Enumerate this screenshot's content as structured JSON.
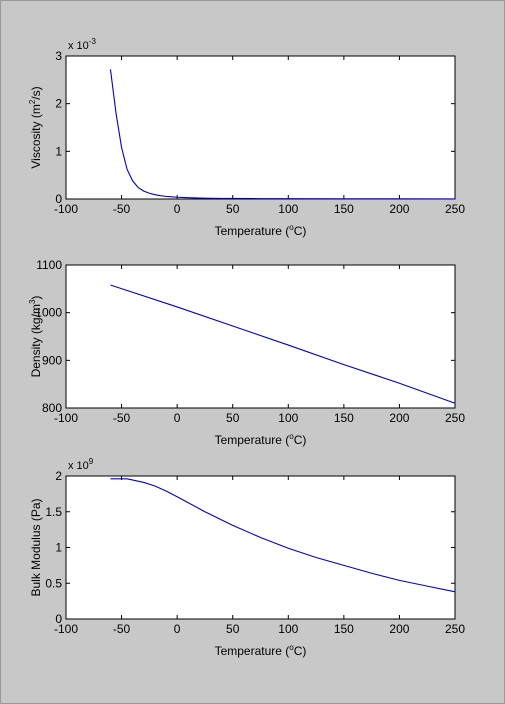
{
  "window": {
    "background": "#c8c8c8"
  },
  "chart_data": [
    {
      "type": "line",
      "xlabel": "Temperature (",
      "xlabel_sup": "o",
      "xlabel_end": "C)",
      "ylabel": "Viscosity (m",
      "ylabel_sup": "2",
      "ylabel_end": "/s)",
      "exponent_base": "x 10",
      "exponent_power": "-3",
      "xlim": [
        -100,
        250
      ],
      "ylim": [
        0,
        3
      ],
      "xticks": [
        "-100",
        "-50",
        "0",
        "50",
        "100",
        "150",
        "200",
        "250"
      ],
      "yticks": [
        "0",
        "1",
        "2",
        "3"
      ],
      "grid": false,
      "series": [
        {
          "color": "#0000cc",
          "x": [
            -60,
            -55,
            -50,
            -45,
            -40,
            -35,
            -30,
            -25,
            -20,
            -15,
            -10,
            -5,
            0,
            10,
            20,
            30,
            40,
            50,
            75,
            100,
            150,
            200,
            250
          ],
          "y": [
            2.72,
            1.8,
            1.08,
            0.62,
            0.38,
            0.24,
            0.165,
            0.12,
            0.09,
            0.07,
            0.055,
            0.045,
            0.037,
            0.027,
            0.02,
            0.016,
            0.013,
            0.011,
            0.008,
            0.006,
            0.004,
            0.003,
            0.0025
          ]
        }
      ]
    },
    {
      "type": "line",
      "xlabel": "Temperature (",
      "xlabel_sup": "o",
      "xlabel_end": "C)",
      "ylabel": "Density (kg/m",
      "ylabel_sup": "3",
      "ylabel_end": ")",
      "xlim": [
        -100,
        250
      ],
      "ylim": [
        800,
        1100
      ],
      "xticks": [
        "-100",
        "-50",
        "0",
        "50",
        "100",
        "150",
        "200",
        "250"
      ],
      "yticks": [
        "800",
        "900",
        "1000",
        "1100"
      ],
      "grid": false,
      "series": [
        {
          "color": "#0000cc",
          "x": [
            -60,
            0,
            50,
            100,
            150,
            200,
            250
          ],
          "y": [
            1058,
            1012,
            972,
            932,
            891,
            852,
            810
          ]
        }
      ]
    },
    {
      "type": "line",
      "xlabel": "Temperature (",
      "xlabel_sup": "o",
      "xlabel_end": "C)",
      "ylabel": "Bulk Modulus (Pa)",
      "ylabel_sup": "",
      "ylabel_end": "",
      "exponent_base": "x 10",
      "exponent_power": "9",
      "xlim": [
        -100,
        250
      ],
      "ylim": [
        0,
        2
      ],
      "xticks": [
        "-100",
        "-50",
        "0",
        "50",
        "100",
        "150",
        "200",
        "250"
      ],
      "yticks": [
        "0",
        "0.5",
        "1",
        "1.5",
        "2"
      ],
      "grid": false,
      "series": [
        {
          "color": "#0000cc",
          "x": [
            -60,
            -45,
            -30,
            -20,
            -10,
            0,
            25,
            50,
            75,
            100,
            125,
            150,
            175,
            200,
            225,
            250
          ],
          "y": [
            1.96,
            1.96,
            1.91,
            1.86,
            1.79,
            1.71,
            1.5,
            1.31,
            1.14,
            0.99,
            0.86,
            0.75,
            0.64,
            0.54,
            0.46,
            0.38
          ]
        }
      ]
    }
  ]
}
